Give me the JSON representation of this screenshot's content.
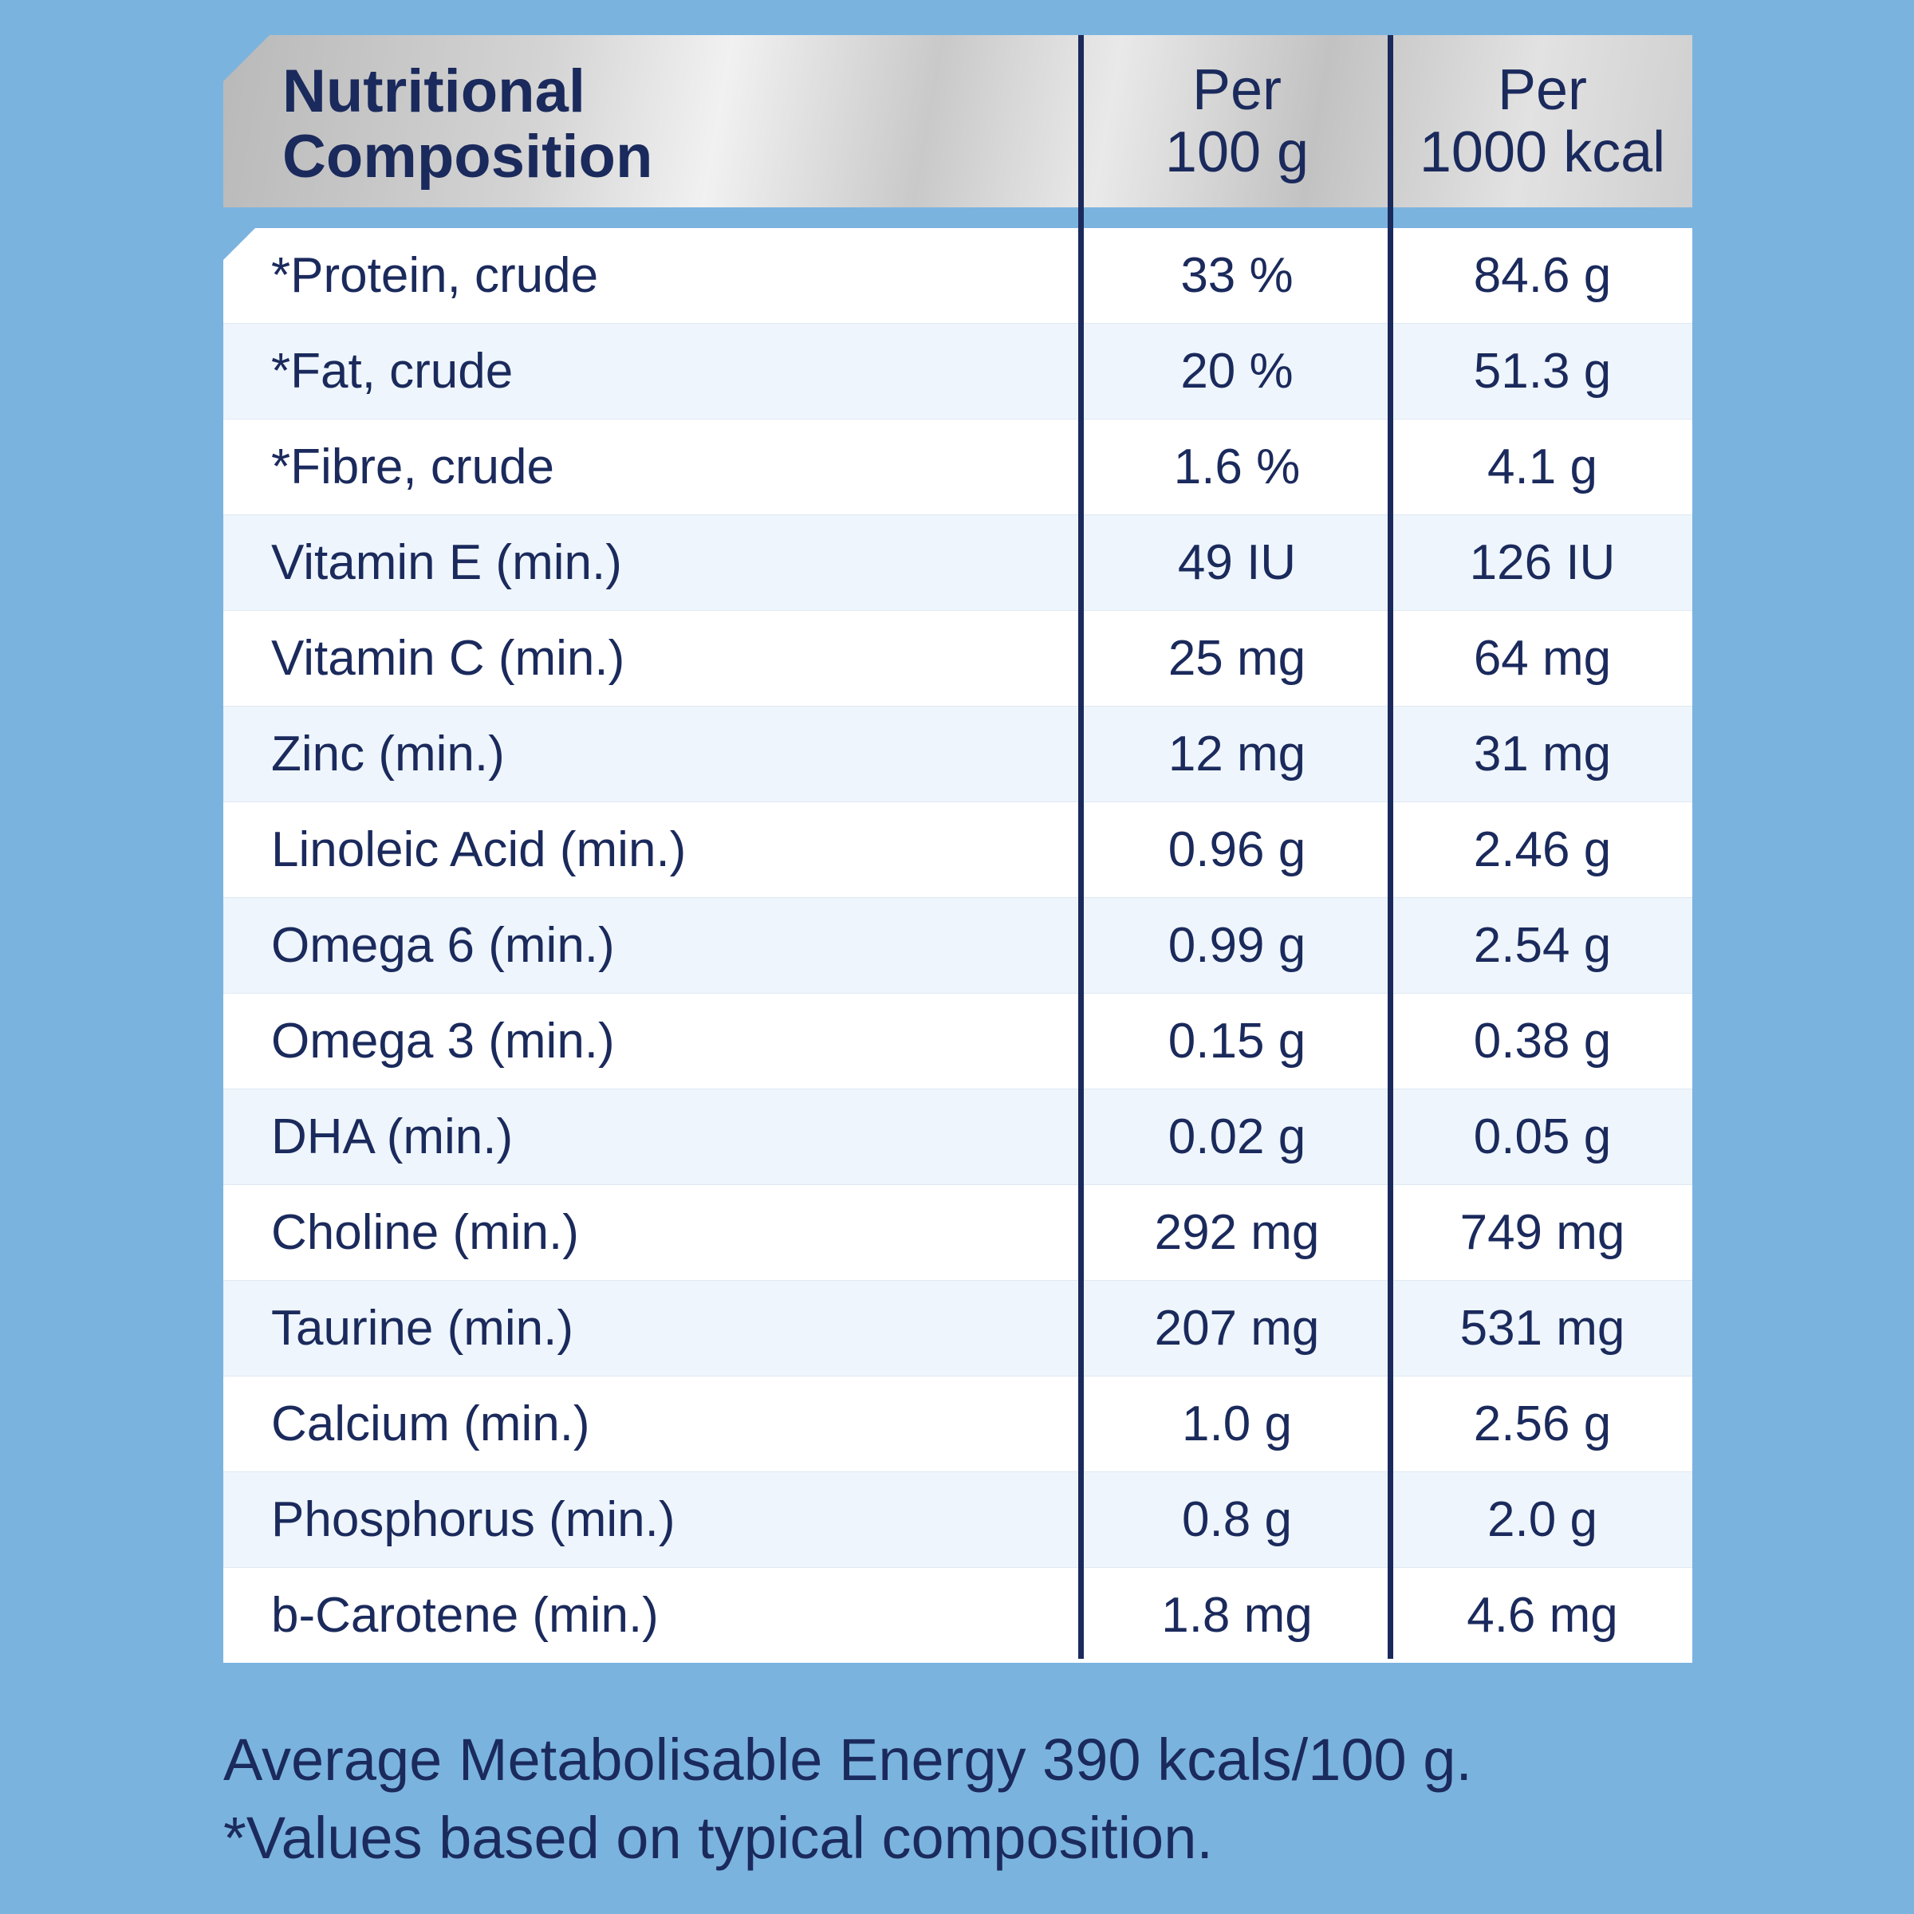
{
  "header": {
    "label_line1": "Nutritional",
    "label_line2": "Composition",
    "col_a_line1": "Per",
    "col_a_line2": "100 g",
    "col_b_line1": "Per",
    "col_b_line2": "1000 kcal"
  },
  "rows": [
    {
      "label": "*Protein, crude",
      "per100g": "33 %",
      "per1000kcal": "84.6 g"
    },
    {
      "label": "*Fat, crude",
      "per100g": "20 %",
      "per1000kcal": "51.3 g"
    },
    {
      "label": "*Fibre, crude",
      "per100g": "1.6 %",
      "per1000kcal": "4.1 g"
    },
    {
      "label": "Vitamin E (min.)",
      "per100g": "49 IU",
      "per1000kcal": "126 IU"
    },
    {
      "label": "Vitamin C (min.)",
      "per100g": "25 mg",
      "per1000kcal": "64 mg"
    },
    {
      "label": "Zinc (min.)",
      "per100g": "12 mg",
      "per1000kcal": "31 mg"
    },
    {
      "label": "Linoleic Acid (min.)",
      "per100g": "0.96 g",
      "per1000kcal": "2.46 g"
    },
    {
      "label": "Omega 6 (min.)",
      "per100g": "0.99 g",
      "per1000kcal": "2.54 g"
    },
    {
      "label": "Omega 3 (min.)",
      "per100g": "0.15 g",
      "per1000kcal": "0.38 g"
    },
    {
      "label": "DHA (min.)",
      "per100g": "0.02 g",
      "per1000kcal": "0.05 g"
    },
    {
      "label": "Choline (min.)",
      "per100g": "292 mg",
      "per1000kcal": "749 mg"
    },
    {
      "label": "Taurine (min.)",
      "per100g": "207 mg",
      "per1000kcal": "531 mg"
    },
    {
      "label": "Calcium (min.)",
      "per100g": "1.0 g",
      "per1000kcal": "2.56 g"
    },
    {
      "label": "Phosphorus (min.)",
      "per100g": "0.8 g",
      "per1000kcal": "2.0 g"
    },
    {
      "label": "b-Carotene (min.)",
      "per100g": "1.8 mg",
      "per1000kcal": "4.6 mg"
    }
  ],
  "footer": {
    "energy_note": "Average Metabolisable Energy 390 kcals/100 g.",
    "typical_note": "*Values based on typical composition."
  },
  "colors": {
    "background": "#7bb3df",
    "text": "#1b2a5c",
    "row_alt": "#eef5fc"
  }
}
